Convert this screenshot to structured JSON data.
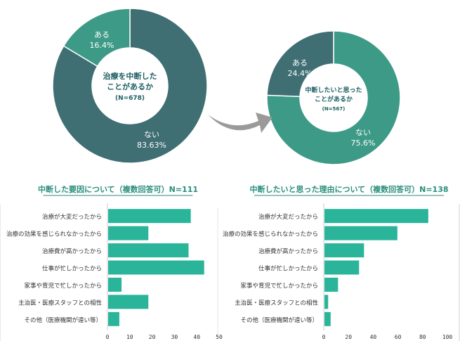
{
  "colors": {
    "donut_dark": "#3f6e73",
    "donut_light": "#3d9a86",
    "bar": "#2ab59a",
    "title": "#2a8d7c",
    "arrow": "#9a9a9a",
    "panel_border": "#e3e3e3"
  },
  "chart_data": [
    {
      "type": "pie",
      "variant": "donut",
      "center_label": [
        "治療を中断した",
        "ことがあるか",
        "(N=678)"
      ],
      "slices": [
        {
          "label": "ない",
          "value": 83.63,
          "value_label": "83.63%",
          "color": "#3f6e73"
        },
        {
          "label": "ある",
          "value": 16.4,
          "value_label": "16.4%",
          "color": "#3d9a86"
        }
      ]
    },
    {
      "type": "pie",
      "variant": "donut",
      "center_label": [
        "中断したいと思った",
        "ことがあるか",
        "(N=567)"
      ],
      "slices": [
        {
          "label": "ない",
          "value": 75.6,
          "value_label": "75.6%",
          "color": "#3d9a86"
        },
        {
          "label": "ある",
          "value": 24.4,
          "value_label": "24.4%",
          "color": "#3f6e73"
        }
      ]
    },
    {
      "type": "bar",
      "orientation": "horizontal",
      "title": "中断した要因について（複数回答可）N=111",
      "categories": [
        "治療が大変だったから",
        "治療の効果を感じられなかったから",
        "治療費が高かったから",
        "仕事が忙しかったから",
        "家事や育児で忙しかったから",
        "主治医・医療スタッフとの相性",
        "その他（医療機関が遠い等）"
      ],
      "values": [
        37,
        18,
        36,
        43,
        6,
        18,
        5
      ],
      "xlim": [
        0,
        50
      ],
      "xticks": [
        0,
        10,
        20,
        30,
        40,
        50
      ],
      "grid": false
    },
    {
      "type": "bar",
      "orientation": "horizontal",
      "title": "中断したいと思った理由について（複数回答可）N=138",
      "categories": [
        "治療が大変だったから",
        "治療の効果を感じられなかったから",
        "治療費が高かったから",
        "仕事が忙しかったから",
        "家事や育児で忙しかったから",
        "主治医・医療スタッフとの相性",
        "その他（医療機関が遠い等）"
      ],
      "values": [
        84,
        59,
        32,
        28,
        11,
        3,
        5
      ],
      "xlim": [
        0,
        100
      ],
      "xticks": [
        0,
        20,
        40,
        60,
        80,
        100
      ],
      "grid": false
    }
  ]
}
